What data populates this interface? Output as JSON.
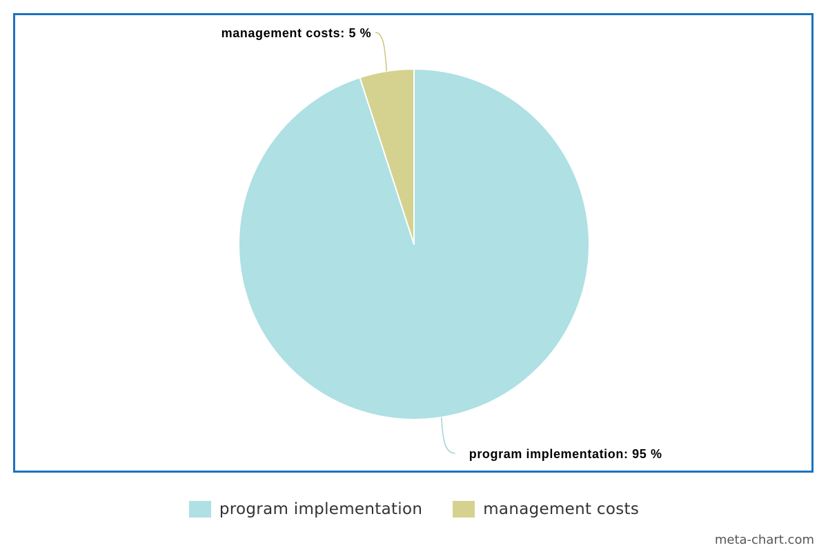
{
  "chart_data": {
    "type": "pie",
    "title": "",
    "categories": [
      "program implementation",
      "management costs"
    ],
    "values": [
      95,
      5
    ],
    "unit": "%",
    "colors": [
      "#aee0e4",
      "#d4d28e"
    ],
    "data_labels": [
      "program implementation: 95 %",
      "management costs: 5 %"
    ],
    "legend_position": "bottom"
  },
  "legend": {
    "items": [
      {
        "label": "program implementation",
        "color": "#aee0e4"
      },
      {
        "label": "management costs",
        "color": "#d4d28e"
      }
    ]
  },
  "watermark": "meta-chart.com",
  "frame_color": "#1b72be"
}
